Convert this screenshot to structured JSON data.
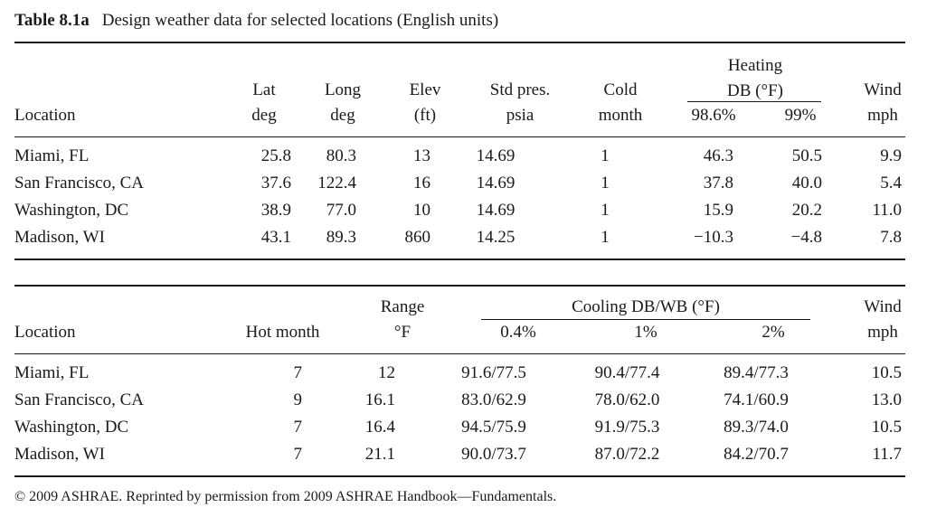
{
  "caption": {
    "number": "Table 8.1a",
    "title": "Design weather data for selected locations (English units)"
  },
  "table1": {
    "headers": {
      "location": "Location",
      "lat": [
        "Lat",
        "deg"
      ],
      "long": [
        "Long",
        "deg"
      ],
      "elev": [
        "Elev",
        "(ft)"
      ],
      "std_pres": [
        "Std pres.",
        "psia"
      ],
      "cold_month": [
        "Cold",
        "month"
      ],
      "heating_group": [
        "Heating",
        "DB (°F)"
      ],
      "heating_986": "98.6%",
      "heating_99": "99%",
      "wind": [
        "Wind",
        "mph"
      ]
    },
    "rows": [
      {
        "location": "Miami, FL",
        "lat": "25.8",
        "long": "80.3",
        "elev": "13",
        "std_pres": "14.69",
        "cold_month": "1",
        "h986": "46.3",
        "h99": "50.5",
        "wind": "9.9"
      },
      {
        "location": "San Francisco, CA",
        "lat": "37.6",
        "long": "122.4",
        "elev": "16",
        "std_pres": "14.69",
        "cold_month": "1",
        "h986": "37.8",
        "h99": "40.0",
        "wind": "5.4"
      },
      {
        "location": "Washington, DC",
        "lat": "38.9",
        "long": "77.0",
        "elev": "10",
        "std_pres": "14.69",
        "cold_month": "1",
        "h986": "15.9",
        "h99": "20.2",
        "wind": "11.0"
      },
      {
        "location": "Madison, WI",
        "lat": "43.1",
        "long": "89.3",
        "elev": "860",
        "std_pres": "14.25",
        "cold_month": "1",
        "h986": "−10.3",
        "h99": "−4.8",
        "wind": "7.8"
      }
    ]
  },
  "table2": {
    "headers": {
      "location": "Location",
      "hot_month": "Hot month",
      "range": [
        "Range",
        "°F"
      ],
      "cooling_group": "Cooling DB/WB (°F)",
      "c04": "0.4%",
      "c1": "1%",
      "c2": "2%",
      "wind": [
        "Wind",
        "mph"
      ]
    },
    "rows": [
      {
        "location": "Miami, FL",
        "hot_month": "7",
        "range": "12",
        "c04": "91.6/77.5",
        "c1": "90.4/77.4",
        "c2": "89.4/77.3",
        "wind": "10.5"
      },
      {
        "location": "San Francisco, CA",
        "hot_month": "9",
        "range": "16.1",
        "c04": "83.0/62.9",
        "c1": "78.0/62.0",
        "c2": "74.1/60.9",
        "wind": "13.0"
      },
      {
        "location": "Washington, DC",
        "hot_month": "7",
        "range": "16.4",
        "c04": "94.5/75.9",
        "c1": "91.9/75.3",
        "c2": "89.3/74.0",
        "wind": "10.5"
      },
      {
        "location": "Madison, WI",
        "hot_month": "7",
        "range": "21.1",
        "c04": "90.0/73.7",
        "c1": "87.0/72.2",
        "c2": "84.2/70.7",
        "wind": "11.7"
      }
    ]
  },
  "footnote": "© 2009 ASHRAE. Reprinted by permission from 2009 ASHRAE Handbook—Fundamentals."
}
